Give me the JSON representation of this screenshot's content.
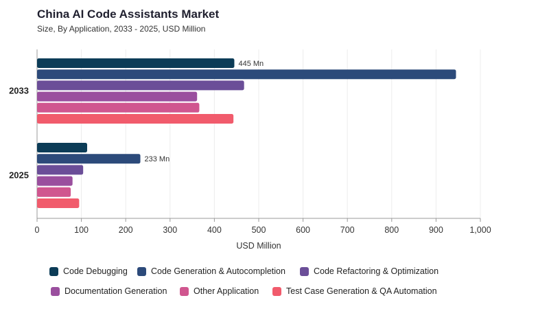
{
  "chart_data": {
    "type": "bar",
    "orientation": "horizontal",
    "title": "China AI Code Assistants Market",
    "subtitle": "Size, By Application, 2033 - 2025, USD Million",
    "xlabel": "USD Million",
    "ylabel": "",
    "xlim": [
      0,
      1000
    ],
    "x_ticks": [
      "0",
      "100",
      "200",
      "300",
      "400",
      "500",
      "600",
      "700",
      "800",
      "900",
      "1,000"
    ],
    "grid": "vertical",
    "legend_position": "bottom",
    "categories": [
      "2033",
      "2025"
    ],
    "series": [
      {
        "name": "Code Debugging",
        "color": "#0c3c57",
        "values": [
          445,
          113
        ]
      },
      {
        "name": "Code Generation & Autocompletion",
        "color": "#2c4a7a",
        "values": [
          945,
          233
        ]
      },
      {
        "name": "Code Refactoring & Optimization",
        "color": "#6b4e98",
        "values": [
          467,
          104
        ]
      },
      {
        "name": "Documentation Generation",
        "color": "#9a4f9e",
        "values": [
          361,
          80
        ]
      },
      {
        "name": "Other Application",
        "color": "#d0568f",
        "values": [
          366,
          76
        ]
      },
      {
        "name": "Test Case Generation & QA Automation",
        "color": "#f15b6c",
        "values": [
          443,
          95
        ]
      }
    ],
    "data_labels": [
      {
        "category": "2033",
        "series": "Code Debugging",
        "text": "445 Mn"
      },
      {
        "category": "2025",
        "series": "Code Generation & Autocompletion",
        "text": "233 Mn"
      }
    ]
  }
}
